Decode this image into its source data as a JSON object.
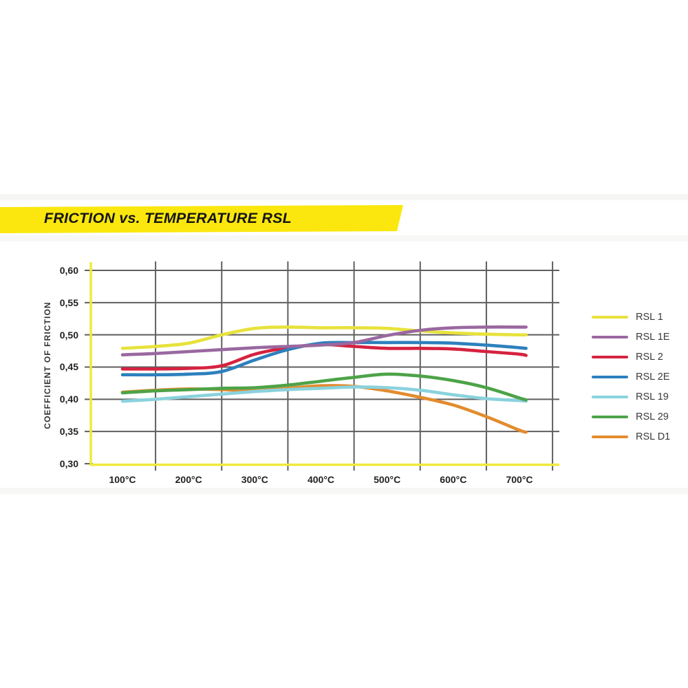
{
  "banner": {
    "title": "FRICTION vs. TEMPERATURE RSL",
    "bg_color": "#fbe70d",
    "text_color": "#161616"
  },
  "chart_data": {
    "type": "line",
    "title": "FRICTION vs. TEMPERATURE RSL",
    "xlabel": "",
    "ylabel": "COEFFICIENT OF FRICTION",
    "x_unit": "°C",
    "xlim": [
      100,
      750
    ],
    "ylim": [
      0.3,
      0.6
    ],
    "grid": true,
    "legend_position": "right",
    "axis_color": "#f0e93a",
    "grid_color": "#5e5e5e",
    "y_ticks": [
      {
        "value": 0.6,
        "label": "0,60"
      },
      {
        "value": 0.55,
        "label": "0,55"
      },
      {
        "value": 0.5,
        "label": "0,50"
      },
      {
        "value": 0.45,
        "label": "0,45"
      },
      {
        "value": 0.4,
        "label": "0,40"
      },
      {
        "value": 0.35,
        "label": "0,35"
      },
      {
        "value": 0.3,
        "label": "0,30"
      }
    ],
    "x_ticks": [
      {
        "value": 100,
        "label": "100°C"
      },
      {
        "value": 200,
        "label": "200°C"
      },
      {
        "value": 300,
        "label": "300°C"
      },
      {
        "value": 400,
        "label": "400°C"
      },
      {
        "value": 500,
        "label": "500°C"
      },
      {
        "value": 600,
        "label": "600°C"
      },
      {
        "value": 700,
        "label": "700°C"
      }
    ],
    "x_gridlines": [
      150,
      250,
      350,
      450,
      550,
      650,
      750
    ],
    "x": [
      100,
      150,
      200,
      250,
      300,
      350,
      400,
      450,
      500,
      550,
      600,
      650,
      700,
      710
    ],
    "series": [
      {
        "name": "RSL 1",
        "color": "#e7e23b",
        "y": [
          0.479,
          0.482,
          0.487,
          0.5,
          0.51,
          0.512,
          0.511,
          0.511,
          0.51,
          0.506,
          0.503,
          0.501,
          0.5,
          0.5
        ]
      },
      {
        "name": "RSL 1E",
        "color": "#9a68a0",
        "y": [
          0.469,
          0.471,
          0.474,
          0.477,
          0.48,
          0.482,
          0.484,
          0.488,
          0.499,
          0.507,
          0.511,
          0.512,
          0.512,
          0.512
        ]
      },
      {
        "name": "RSL 2",
        "color": "#d62240",
        "y": [
          0.447,
          0.447,
          0.448,
          0.452,
          0.47,
          0.48,
          0.485,
          0.482,
          0.479,
          0.479,
          0.478,
          0.474,
          0.47,
          0.468
        ]
      },
      {
        "name": "RSL 2E",
        "color": "#2d80bd",
        "y": [
          0.438,
          0.438,
          0.439,
          0.443,
          0.461,
          0.477,
          0.487,
          0.488,
          0.488,
          0.488,
          0.487,
          0.484,
          0.48,
          0.479
        ]
      },
      {
        "name": "RSL 19",
        "color": "#8ad2dd",
        "y": [
          0.397,
          0.4,
          0.404,
          0.408,
          0.412,
          0.415,
          0.417,
          0.419,
          0.418,
          0.414,
          0.407,
          0.401,
          0.398,
          0.397
        ]
      },
      {
        "name": "RSL 29",
        "color": "#4da348",
        "y": [
          0.41,
          0.413,
          0.415,
          0.417,
          0.418,
          0.422,
          0.428,
          0.434,
          0.439,
          0.436,
          0.429,
          0.418,
          0.402,
          0.399
        ]
      },
      {
        "name": "RSL D1",
        "color": "#e28c2e",
        "y": [
          0.411,
          0.414,
          0.416,
          0.415,
          0.413,
          0.417,
          0.421,
          0.42,
          0.413,
          0.403,
          0.391,
          0.373,
          0.352,
          0.349
        ]
      }
    ],
    "draw_order": [
      "RSL 1",
      "RSL 2",
      "RSL 2E",
      "RSL D1",
      "RSL 19",
      "RSL 29",
      "RSL 1E"
    ]
  }
}
